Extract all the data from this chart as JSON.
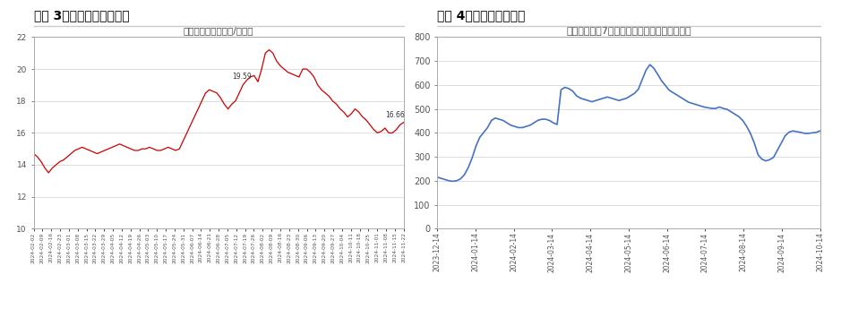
{
  "chart1_title_main": "图表 3：商品猪价格走势图",
  "chart2_title_main": "图表 4：仔猪价格走势图",
  "chart1_subtitle": "商品猪出栏均价（元/千克）",
  "chart2_subtitle": "仔猪：每头重7公斤：规模化养殖场：出栏均价",
  "chart1_line_color": "#cc0000",
  "chart2_line_color": "#4472c4",
  "chart1_annotation_text1": "19.59",
  "chart1_annotation_text2": "16.66",
  "chart1_ylim": [
    10,
    22
  ],
  "chart1_yticks": [
    10,
    12,
    14,
    16,
    18,
    20,
    22
  ],
  "chart2_ylim": [
    0,
    800
  ],
  "chart2_yticks": [
    0,
    100,
    200,
    300,
    400,
    500,
    600,
    700,
    800
  ],
  "chart1_y": [
    14.7,
    14.5,
    14.2,
    13.8,
    13.5,
    13.8,
    14.0,
    14.2,
    14.3,
    14.5,
    14.7,
    14.9,
    15.0,
    15.1,
    15.0,
    14.9,
    14.8,
    14.7,
    14.8,
    14.9,
    15.0,
    15.1,
    15.2,
    15.3,
    15.2,
    15.1,
    15.0,
    14.9,
    14.9,
    15.0,
    15.0,
    15.1,
    15.0,
    14.9,
    14.9,
    15.0,
    15.1,
    15.0,
    14.9,
    15.0,
    15.5,
    16.0,
    16.5,
    17.0,
    17.5,
    18.0,
    18.5,
    18.7,
    18.6,
    18.5,
    18.2,
    17.8,
    17.5,
    17.8,
    18.0,
    18.5,
    19.0,
    19.3,
    19.5,
    19.59,
    19.2,
    20.0,
    21.0,
    21.2,
    21.0,
    20.5,
    20.2,
    20.0,
    19.8,
    19.7,
    19.6,
    19.5,
    20.0,
    20.0,
    19.8,
    19.5,
    19.0,
    18.7,
    18.5,
    18.3,
    18.0,
    17.8,
    17.5,
    17.3,
    17.0,
    17.2,
    17.5,
    17.3,
    17.0,
    16.8,
    16.5,
    16.2,
    16.0,
    16.1,
    16.3,
    16.0,
    16.0,
    16.2,
    16.5,
    16.66
  ],
  "chart1_xtick_labels": [
    "2024-02-02",
    "2024-02-09",
    "2024-02-16",
    "2024-02-23",
    "2024-03-01",
    "2024-03-08",
    "2024-03-15",
    "2024-03-22",
    "2024-03-29",
    "2024-04-05",
    "2024-04-12",
    "2024-04-19",
    "2024-04-26",
    "2024-05-03",
    "2024-05-10",
    "2024-05-17",
    "2024-05-24",
    "2024-05-31",
    "2024-06-07",
    "2024-06-14",
    "2024-06-21",
    "2024-06-28",
    "2024-07-05",
    "2024-07-12",
    "2024-07-19",
    "2024-07-26",
    "2024-08-02",
    "2024-08-09",
    "2024-08-16",
    "2024-08-23",
    "2024-08-30",
    "2024-09-06",
    "2024-09-13",
    "2024-09-20",
    "2024-09-27",
    "2024-10-04",
    "2024-10-11",
    "2024-10-18",
    "2024-10-25",
    "2024-11-01",
    "2024-11-08",
    "2024-11-15",
    "2024-11-22"
  ],
  "chart2_y": [
    215,
    210,
    205,
    200,
    198,
    200,
    208,
    225,
    255,
    295,
    345,
    382,
    402,
    422,
    452,
    462,
    457,
    452,
    442,
    432,
    427,
    422,
    422,
    427,
    432,
    442,
    452,
    457,
    457,
    452,
    442,
    435,
    580,
    590,
    585,
    575,
    555,
    545,
    540,
    535,
    530,
    535,
    540,
    545,
    550,
    545,
    540,
    535,
    540,
    545,
    555,
    565,
    582,
    622,
    662,
    685,
    670,
    645,
    618,
    598,
    578,
    568,
    558,
    548,
    538,
    528,
    523,
    518,
    513,
    508,
    505,
    502,
    502,
    508,
    502,
    498,
    488,
    478,
    468,
    452,
    428,
    398,
    358,
    308,
    290,
    283,
    288,
    298,
    328,
    358,
    388,
    403,
    408,
    405,
    402,
    398,
    398,
    400,
    402,
    408
  ],
  "chart2_xtick_labels": [
    "2023-12-14",
    "2024-01-14",
    "2024-02-14",
    "2024-03-14",
    "2024-04-14",
    "2024-05-14",
    "2024-06-14",
    "2024-07-14",
    "2024-08-14",
    "2024-09-14",
    "2024-10-14"
  ],
  "bg_color": "#ffffff",
  "plot_bg_color": "#ffffff",
  "grid_color": "#d0d0d0",
  "border_color": "#aaaaaa",
  "title_color": "#000000",
  "tick_label_color": "#555555",
  "divider_color": "#cccccc"
}
